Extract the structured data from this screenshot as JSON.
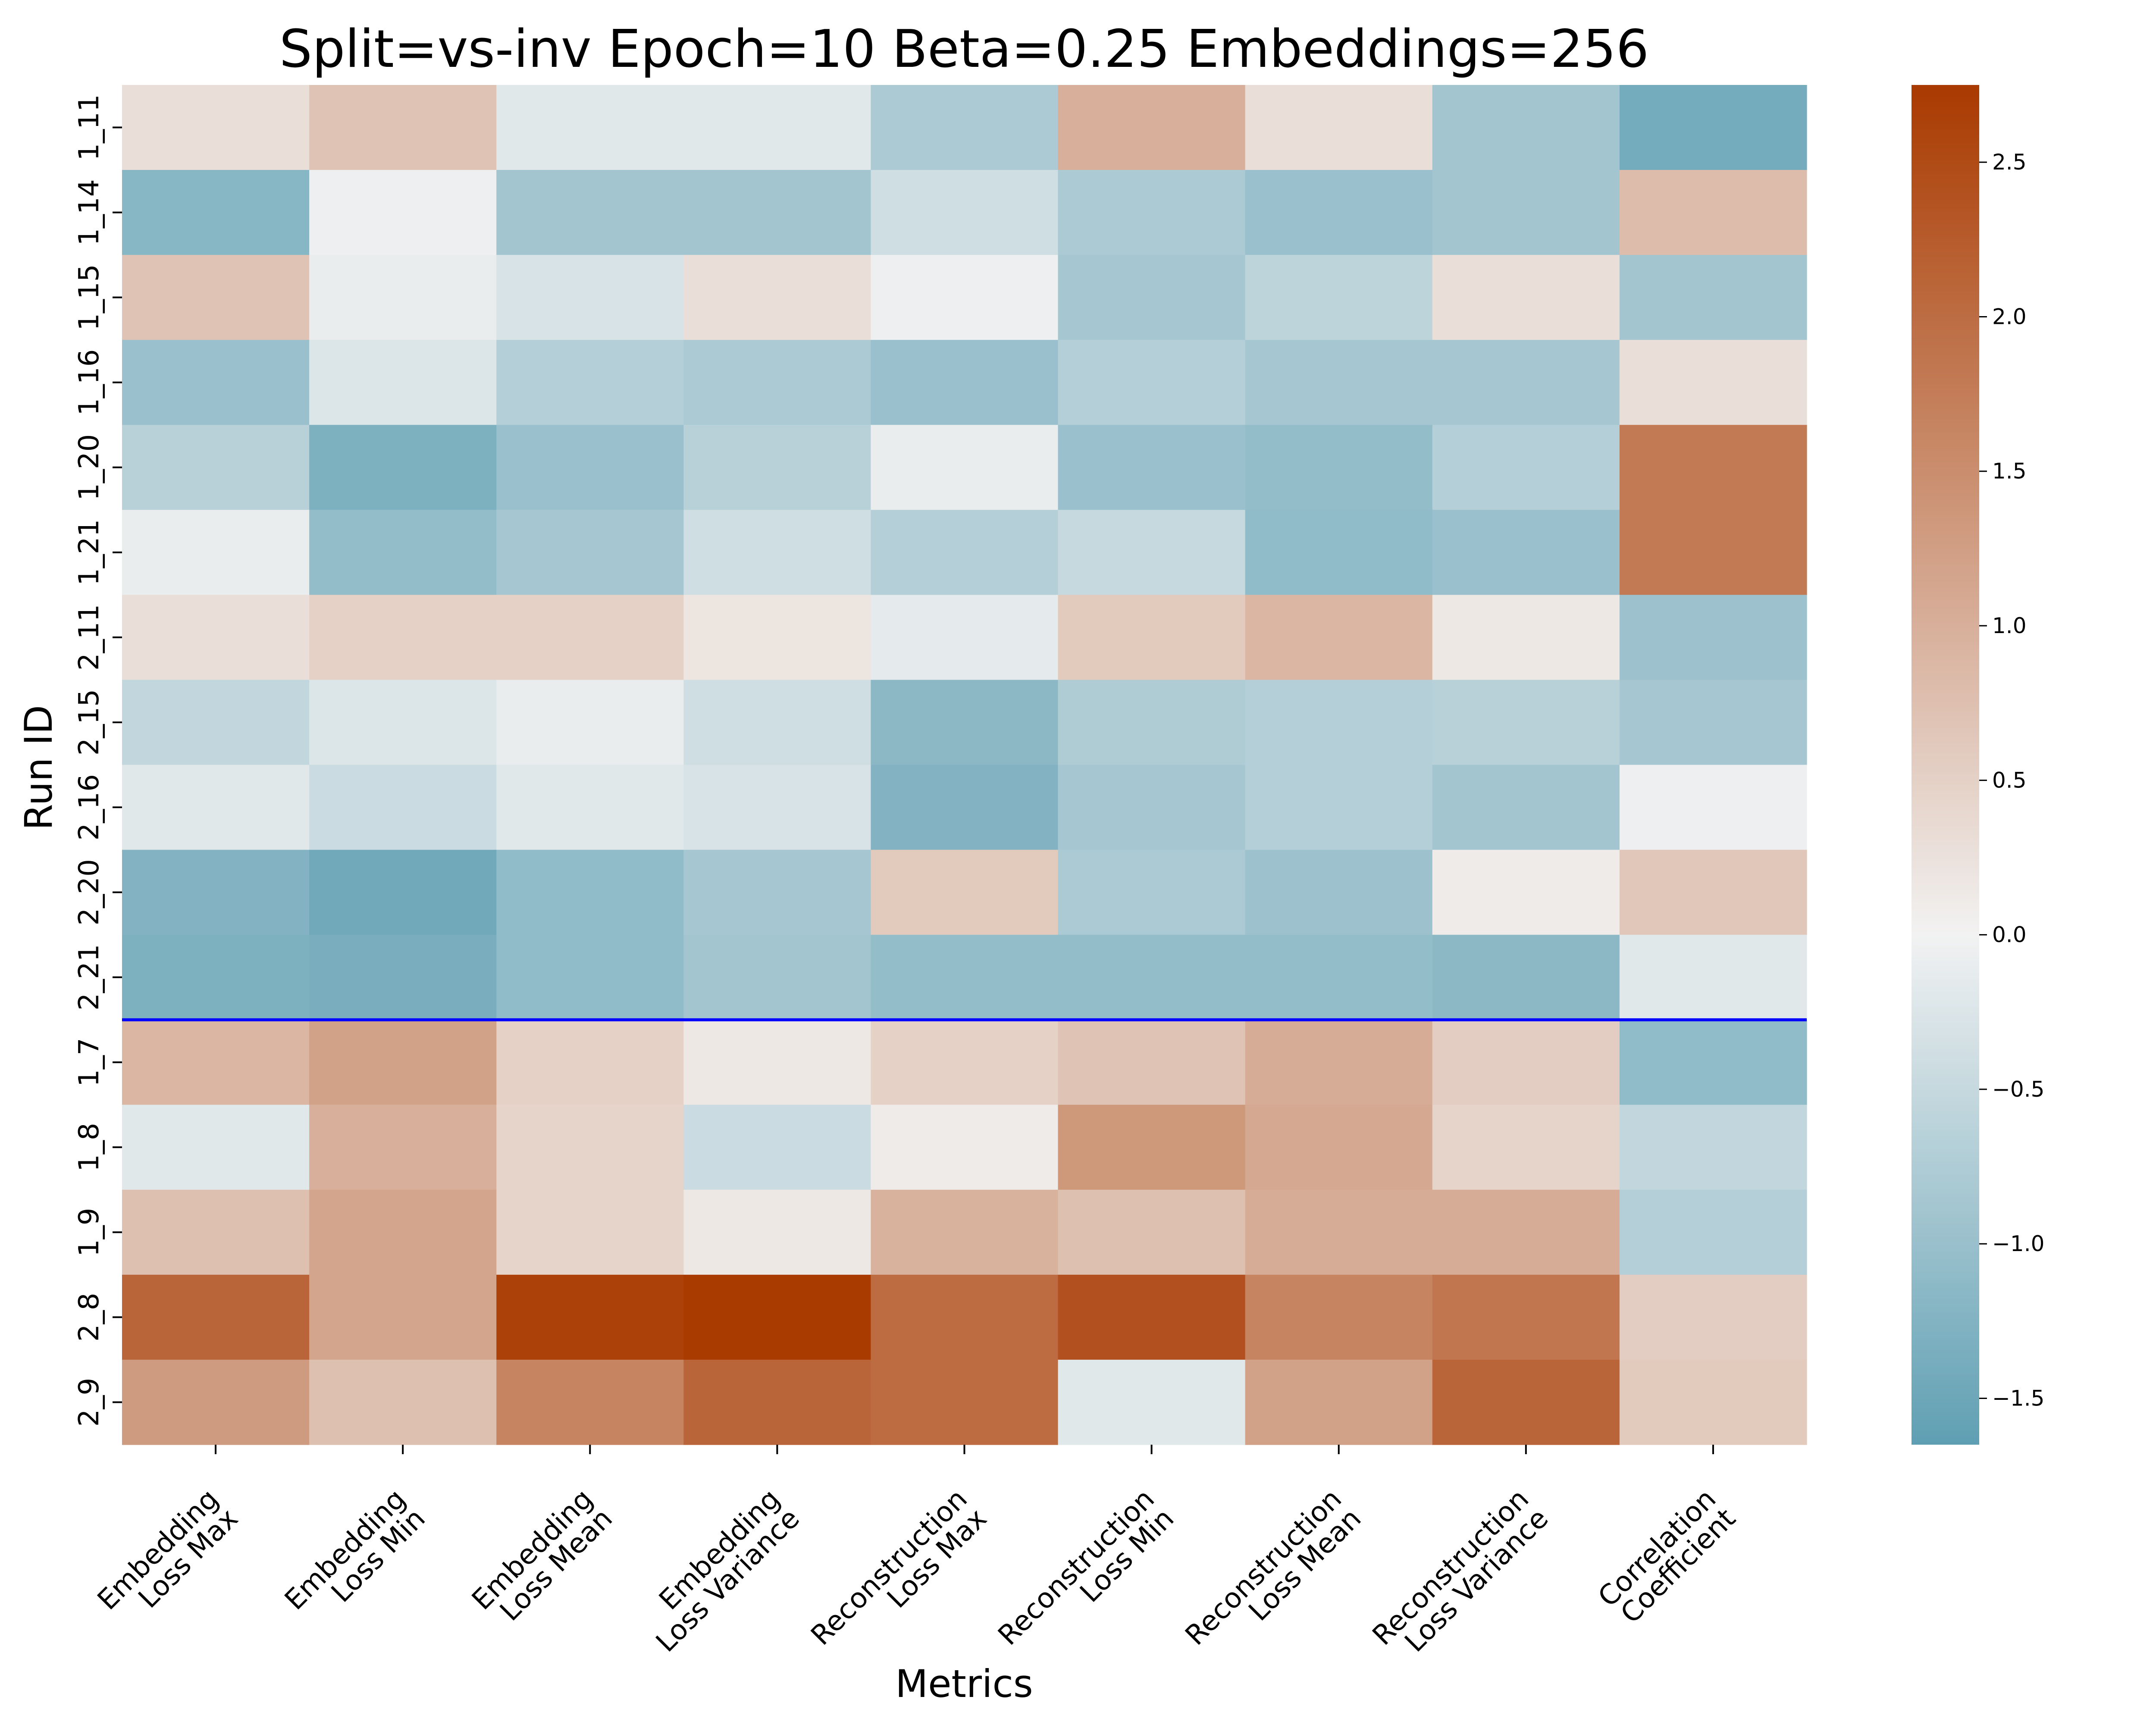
{
  "chart_data": {
    "type": "heatmap",
    "title": "Split=vs-inv Epoch=10 Beta=0.25 Embeddings=256",
    "xlabel": "Metrics",
    "ylabel": "Run ID",
    "x_categories": [
      [
        "Embedding",
        "Loss Max"
      ],
      [
        "Embedding",
        "Loss Min"
      ],
      [
        "Embedding",
        "Loss Mean"
      ],
      [
        "Embedding",
        "Loss Variance"
      ],
      [
        "Reconstruction",
        "Loss Max"
      ],
      [
        "Reconstruction",
        "Loss Min"
      ],
      [
        "Reconstruction",
        "Loss Mean"
      ],
      [
        "Reconstruction",
        "Loss Variance"
      ],
      [
        "Correlation",
        "Coefficient"
      ]
    ],
    "y_categories": [
      "1_11",
      "1_14",
      "1_15",
      "1_16",
      "1_20",
      "1_21",
      "2_11",
      "2_15",
      "2_16",
      "2_20",
      "2_21",
      "1_7",
      "1_8",
      "1_9",
      "2_8",
      "2_9"
    ],
    "values": [
      [
        0.3,
        0.7,
        -0.2,
        -0.2,
        -0.8,
        1.0,
        0.3,
        -0.9,
        -1.4
      ],
      [
        -1.2,
        -0.05,
        -0.9,
        -0.9,
        -0.4,
        -0.8,
        -1.0,
        -0.9,
        0.8
      ],
      [
        0.7,
        -0.1,
        -0.3,
        0.3,
        -0.05,
        -0.85,
        -0.6,
        0.3,
        -0.9
      ],
      [
        -1.0,
        -0.25,
        -0.7,
        -0.8,
        -1.0,
        -0.7,
        -0.85,
        -0.85,
        0.3
      ],
      [
        -0.65,
        -1.3,
        -1.0,
        -0.65,
        -0.1,
        -1.0,
        -1.05,
        -0.7,
        1.8
      ],
      [
        -0.1,
        -1.05,
        -0.85,
        -0.4,
        -0.7,
        -0.5,
        -1.1,
        -1.0,
        1.8
      ],
      [
        0.3,
        0.5,
        0.5,
        0.2,
        -0.15,
        0.6,
        0.9,
        0.15,
        -0.95
      ],
      [
        -0.55,
        -0.25,
        -0.1,
        -0.4,
        -1.15,
        -0.75,
        -0.7,
        -0.65,
        -0.85
      ],
      [
        -0.2,
        -0.45,
        -0.2,
        -0.3,
        -1.25,
        -0.85,
        -0.7,
        -0.9,
        -0.05
      ],
      [
        -1.25,
        -1.45,
        -1.1,
        -0.85,
        0.6,
        -0.8,
        -0.95,
        0.1,
        0.65
      ],
      [
        -1.3,
        -1.35,
        -1.1,
        -0.9,
        -1.05,
        -1.05,
        -1.05,
        -1.15,
        -0.2
      ],
      [
        0.9,
        1.2,
        0.5,
        0.15,
        0.5,
        0.7,
        1.05,
        0.55,
        -1.1
      ],
      [
        -0.2,
        1.0,
        0.45,
        -0.45,
        0.1,
        1.35,
        1.1,
        0.45,
        -0.55
      ],
      [
        0.75,
        1.15,
        0.45,
        0.15,
        0.95,
        0.75,
        1.05,
        1.05,
        -0.7
      ],
      [
        2.1,
        1.15,
        2.65,
        2.75,
        2.0,
        2.4,
        1.65,
        1.85,
        0.55
      ],
      [
        1.3,
        0.75,
        1.65,
        2.1,
        2.0,
        -0.2,
        1.2,
        2.1,
        0.6
      ]
    ],
    "vmin": -1.65,
    "vmax": 2.75,
    "separator_after_row": "2_21",
    "separator_color": "#0000ff",
    "colormap": {
      "low": "#5f9fb3",
      "mid": "#f2f2f2",
      "high": "#a93a00"
    },
    "colorbar_ticks": [
      -1.5,
      -1.0,
      -0.5,
      0.0,
      0.5,
      1.0,
      1.5,
      2.0,
      2.5
    ],
    "colorbar_tick_labels": [
      "−1.5",
      "−1.0",
      "−0.5",
      "0.0",
      "0.5",
      "1.0",
      "1.5",
      "2.0",
      "2.5"
    ]
  }
}
